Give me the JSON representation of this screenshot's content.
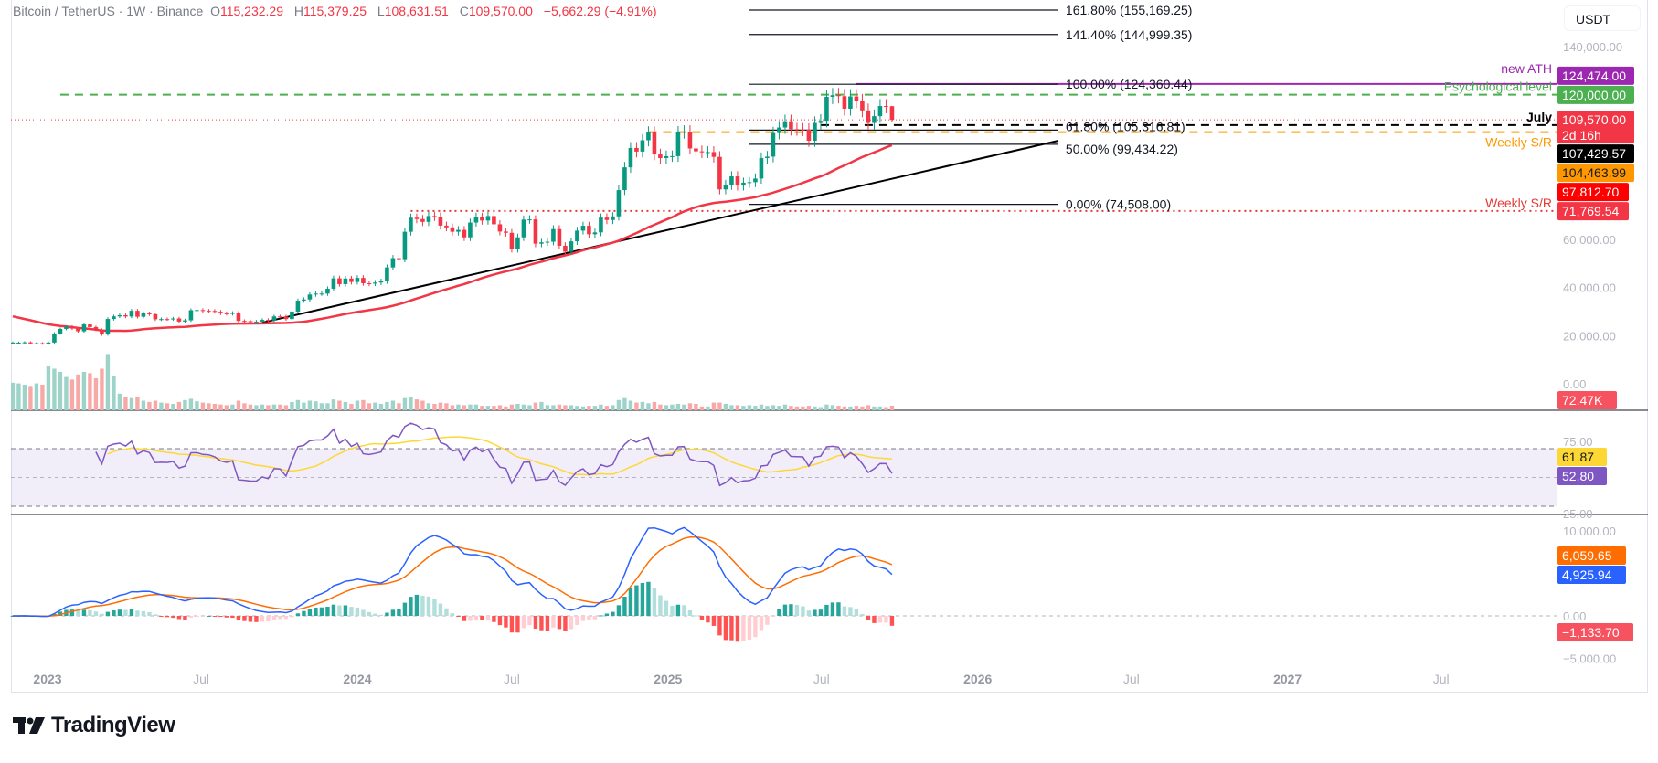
{
  "header": {
    "symbol": "Bitcoin / TetherUS · 1W · Binance",
    "o_label": "O",
    "o": "115,232.29",
    "h_label": "H",
    "h": "115,379.25",
    "l_label": "L",
    "l": "108,631.51",
    "c_label": "C",
    "c": "109,570.00",
    "change": "−5,662.29 (−4.91%)"
  },
  "currency_button": "USDT",
  "logo": "TradingView",
  "colors": {
    "up": "#089981",
    "down": "#F23645",
    "ma": "#F23645",
    "rsi": "#7E57C2",
    "rsi_ma": "#FDD835",
    "macd": "#2962FF",
    "signal": "#FF6D00",
    "hist_up": "#26A69A",
    "hist_up_light": "#B2DFDB",
    "hist_down": "#FF5252",
    "hist_down_light": "#FFCDD2"
  },
  "chart_data": {
    "type": "candlestick",
    "interval": "1W",
    "exchange": "Binance",
    "start_week": "2022-11-21",
    "closes": [
      17100,
      17100,
      17200,
      16750,
      16840,
      16620,
      17130,
      20880,
      22780,
      23740,
      22930,
      21780,
      24630,
      23550,
      22430,
      20460,
      26910,
      27990,
      28450,
      27940,
      30300,
      27820,
      29230,
      28880,
      26770,
      26850,
      26810,
      27100,
      25850,
      26340,
      30540,
      30600,
      30290,
      30240,
      29910,
      29270,
      29050,
      29400,
      26100,
      26000,
      25830,
      25830,
      26530,
      26250,
      27970,
      27930,
      26860,
      29990,
      34500,
      35010,
      37060,
      37450,
      37450,
      39460,
      43780,
      41370,
      43700,
      42280,
      43950,
      41730,
      41580,
      42030,
      42580,
      48300,
      52140,
      51730,
      63110,
      68950,
      68390,
      67210,
      69650,
      69360,
      65660,
      64940,
      63120,
      63890,
      60800,
      66940,
      69290,
      67770,
      69650,
      66220,
      63210,
      62680,
      55860,
      60800,
      68160,
      68250,
      58160,
      58710,
      58970,
      64220,
      57300,
      54840,
      59130,
      63580,
      65600,
      62080,
      62850,
      69000,
      68000,
      69500,
      80400,
      89850,
      97900,
      96400,
      101100,
      104300,
      95200,
      93700,
      94500,
      94500,
      104400,
      104700,
      97700,
      96500,
      96100,
      96200,
      94200,
      80700,
      82600,
      86100,
      82300,
      83500,
      83700,
      85200,
      93700,
      94300,
      104100,
      106400,
      109000,
      105700,
      105600,
      105500,
      100900,
      108300,
      109200,
      119100,
      119800,
      119400,
      114200,
      119300,
      117400,
      113500,
      108300,
      111100,
      115300,
      115200,
      109570
    ],
    "last_candle": {
      "open": 115232.29,
      "high": 115379.25,
      "low": 108631.51,
      "close": 109570.0,
      "change": -5662.29,
      "change_pct": -4.91
    },
    "volume_k": [
      430,
      420,
      400,
      380,
      420,
      400,
      700,
      650,
      600,
      520,
      480,
      560,
      600,
      580,
      500,
      650,
      880,
      540,
      260,
      200,
      190,
      210,
      150,
      130,
      150,
      120,
      110,
      100,
      130,
      160,
      180,
      140,
      120,
      110,
      100,
      90,
      80,
      90,
      150,
      110,
      90,
      80,
      90,
      80,
      90,
      90,
      80,
      130,
      160,
      120,
      150,
      140,
      110,
      110,
      170,
      150,
      130,
      100,
      150,
      160,
      110,
      120,
      100,
      130,
      150,
      110,
      190,
      210,
      170,
      150,
      110,
      100,
      120,
      110,
      80,
      90,
      80,
      90,
      90,
      70,
      70,
      70,
      80,
      60,
      90,
      100,
      90,
      80,
      120,
      130,
      80,
      80,
      90,
      80,
      80,
      70,
      60,
      70,
      70,
      90,
      70,
      80,
      160,
      190,
      150,
      120,
      130,
      110,
      130,
      90,
      80,
      90,
      100,
      90,
      110,
      100,
      60,
      60,
      120,
      120,
      100,
      80,
      80,
      70,
      80,
      70,
      90,
      70,
      80,
      70,
      90,
      70,
      60,
      60,
      70,
      60,
      50,
      90,
      80,
      70,
      60,
      60,
      70,
      60,
      80,
      60,
      60,
      50,
      72.47
    ],
    "volume_label": "72.47K",
    "x_axis": {
      "ticks": [
        {
          "label": "2023",
          "date": "2023-01-01",
          "major": true
        },
        {
          "label": "Jul",
          "date": "2023-07-01",
          "major": false
        },
        {
          "label": "2024",
          "date": "2024-01-01",
          "major": true
        },
        {
          "label": "Jul",
          "date": "2024-07-01",
          "major": false
        },
        {
          "label": "2025",
          "date": "2025-01-01",
          "major": true
        },
        {
          "label": "Jul",
          "date": "2025-07-01",
          "major": false
        },
        {
          "label": "2026",
          "date": "2026-01-01",
          "major": true
        },
        {
          "label": "Jul",
          "date": "2026-07-01",
          "major": false
        },
        {
          "label": "2027",
          "date": "2027-01-01",
          "major": true
        },
        {
          "label": "Jul",
          "date": "2027-07-01",
          "major": false
        }
      ]
    },
    "price_axis": {
      "scale": "linear",
      "ticks": [
        {
          "label": "140,000.00",
          "value": 140000
        },
        {
          "label": "60,000.00",
          "value": 60000
        },
        {
          "label": "40,000.00",
          "value": 40000
        },
        {
          "label": "20,000.00",
          "value": 20000
        },
        {
          "label": "0.00",
          "value": 0
        }
      ]
    },
    "price_labels": [
      {
        "text": "124,474.00",
        "value": 124474.0,
        "color": "#9C27B0",
        "text_color": "#FFFFFF"
      },
      {
        "text": "120,000.00",
        "value": 120000.0,
        "color": "#4CAF50",
        "text_color": "#FFFFFF"
      },
      {
        "text": "109,570.00",
        "value": 109570.0,
        "color": "#F23645",
        "text_color": "#FFFFFF",
        "sub": "2d 16h"
      },
      {
        "text": "107,429.57",
        "value": 107429.57,
        "color": "#000000",
        "text_color": "#FFFFFF"
      },
      {
        "text": "104,463.99",
        "value": 104463.99,
        "color": "#FF9800",
        "text_color": "#131722"
      },
      {
        "text": "97,812.70",
        "value": 97812.7,
        "color": "#FF0000",
        "text_color": "#FFFFFF"
      },
      {
        "text": "71,769.54",
        "value": 71769.54,
        "color": "#F23645",
        "text_color": "#FFFFFF"
      }
    ],
    "levels": [
      {
        "label": "new ATH",
        "value": 124474.0,
        "color": "#9C27B0",
        "style": "solid",
        "from": "2025-08-11"
      },
      {
        "label": "Psychological level",
        "value": 120000.0,
        "color": "#4CAF50",
        "style": "dashed",
        "from": "2023-01-16"
      },
      {
        "label": "July",
        "value": 107429.57,
        "color": "#000000",
        "style": "dashed",
        "from": "2025-06-30"
      },
      {
        "label": "Weekly S/R",
        "value": 104463.99,
        "color": "#FF9800",
        "style": "dashed",
        "from": "2024-12-09"
      },
      {
        "label": "Weekly S/R",
        "value": 71769.54,
        "color": "#E53935",
        "style": "dotted",
        "from": "2024-03-04"
      }
    ],
    "fibonacci": {
      "low": 74508.0,
      "high": 124360.44,
      "from": "2025-04-07",
      "to": "2026-04-06",
      "levels": [
        {
          "ratio": 1.618,
          "label": "161.80% (155,169.25)"
        },
        {
          "ratio": 1.414,
          "label": "141.40% (144,999.35)"
        },
        {
          "ratio": 1.0,
          "label": "100.00% (124,360.44)"
        },
        {
          "ratio": 0.618,
          "label": "61.80% (105,316.81)"
        },
        {
          "ratio": 0.5,
          "label": "50.00% (99,434.22)"
        },
        {
          "ratio": 0.0,
          "label": "0.00% (74,508.00)"
        }
      ]
    },
    "trendline": {
      "start": {
        "date": "2023-09-11",
        "price": 25400
      },
      "end": {
        "date": "2026-04-06",
        "price": 100900
      },
      "color": "#000000"
    },
    "rsi": {
      "ticks": [
        {
          "label": "75.00",
          "value": 75
        },
        {
          "label": "25.00",
          "value": 25
        }
      ],
      "bands": [
        70,
        50,
        30
      ],
      "labels": [
        {
          "text": "61.87",
          "value": 61.87,
          "color": "#FDD835",
          "text_color": "#131722"
        },
        {
          "text": "52.80",
          "value": 52.8,
          "color": "#7E57C2",
          "text_color": "#FFFFFF"
        }
      ]
    },
    "macd": {
      "ticks": [
        {
          "label": "10,000.00",
          "value": 10000
        },
        {
          "label": "0.00",
          "value": 0
        },
        {
          "label": "−5,000.00",
          "value": -5000
        }
      ],
      "labels": [
        {
          "text": "6,059.65",
          "value": 6059.65,
          "color": "#FF6D00",
          "text_color": "#FFFFFF"
        },
        {
          "text": "4,925.94",
          "value": 4925.94,
          "color": "#2962FF",
          "text_color": "#FFFFFF"
        },
        {
          "text": "−1,133.70",
          "value": -1133.7,
          "color": "#F7525F",
          "text_color": "#FFFFFF"
        }
      ]
    }
  }
}
